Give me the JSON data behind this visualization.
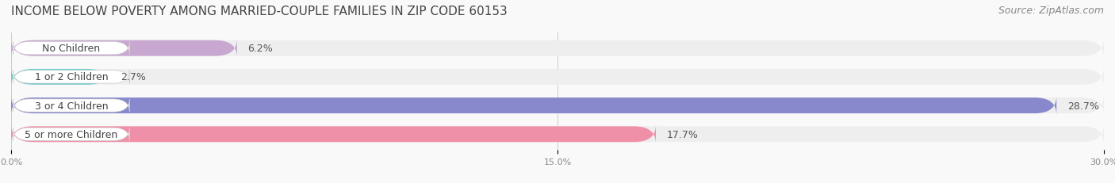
{
  "title": "INCOME BELOW POVERTY AMONG MARRIED-COUPLE FAMILIES IN ZIP CODE 60153",
  "source": "Source: ZipAtlas.com",
  "categories": [
    "No Children",
    "1 or 2 Children",
    "3 or 4 Children",
    "5 or more Children"
  ],
  "values": [
    6.2,
    2.7,
    28.7,
    17.7
  ],
  "bar_colors": [
    "#c8a8d0",
    "#6dcdc8",
    "#8888cc",
    "#f090a8"
  ],
  "label_bg_colors": [
    "#e8d8f0",
    "#b0e8e4",
    "#c0c0e0",
    "#f8c0d0"
  ],
  "xlim": [
    0,
    30
  ],
  "xticks": [
    0.0,
    15.0,
    30.0
  ],
  "xtick_labels": [
    "0.0%",
    "15.0%",
    "30.0%"
  ],
  "bar_height": 0.55,
  "background_color": "#f9f9f9",
  "bar_bg_color": "#eeeeee",
  "title_fontsize": 11,
  "source_fontsize": 9,
  "label_fontsize": 9,
  "value_fontsize": 9
}
